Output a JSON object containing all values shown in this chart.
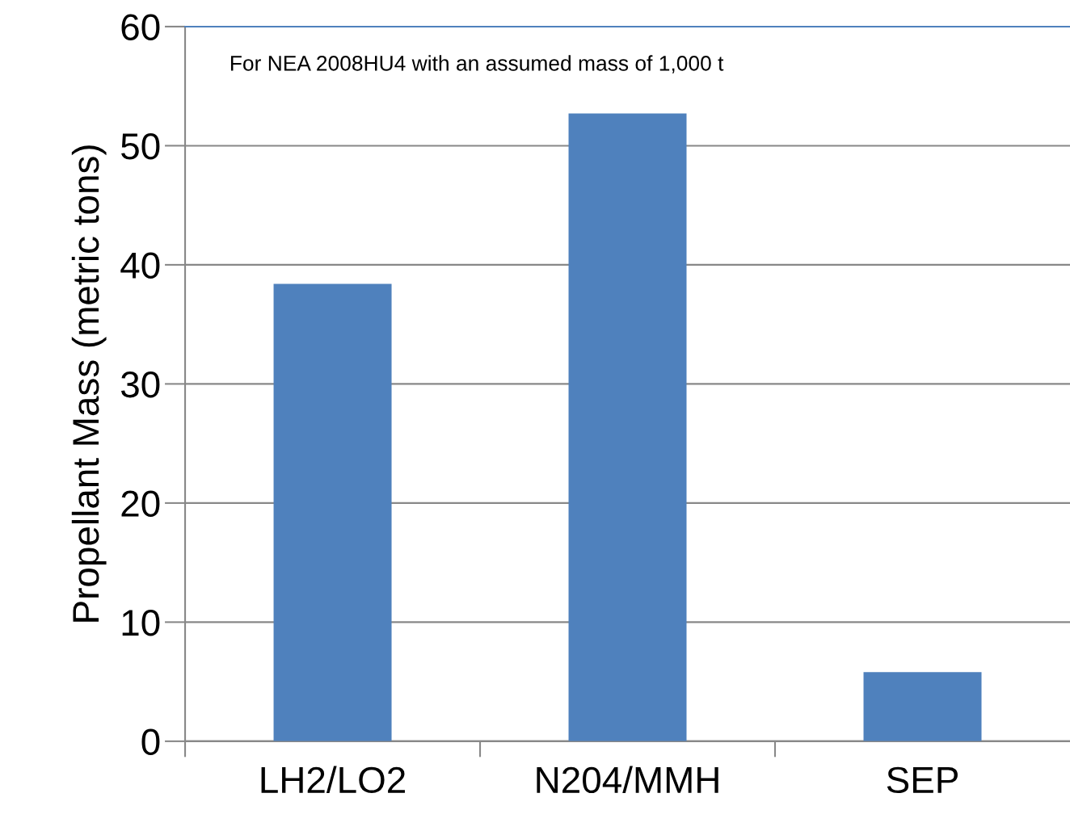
{
  "chart_data": {
    "type": "bar",
    "ylabel": "Propellant Mass (metric tons)",
    "annotations": [
      "For NEA 2008HU4 with an assumed mass of 1,000 t"
    ],
    "categories": [
      "LH2/LO2",
      "N204/MMH",
      "SEP"
    ],
    "values": [
      38.4,
      52.7,
      5.8
    ],
    "color": "#4f81bd",
    "ylim": [
      0,
      60
    ],
    "yticks": [
      0,
      10,
      20,
      30,
      40,
      50,
      60
    ],
    "grid": "y"
  }
}
